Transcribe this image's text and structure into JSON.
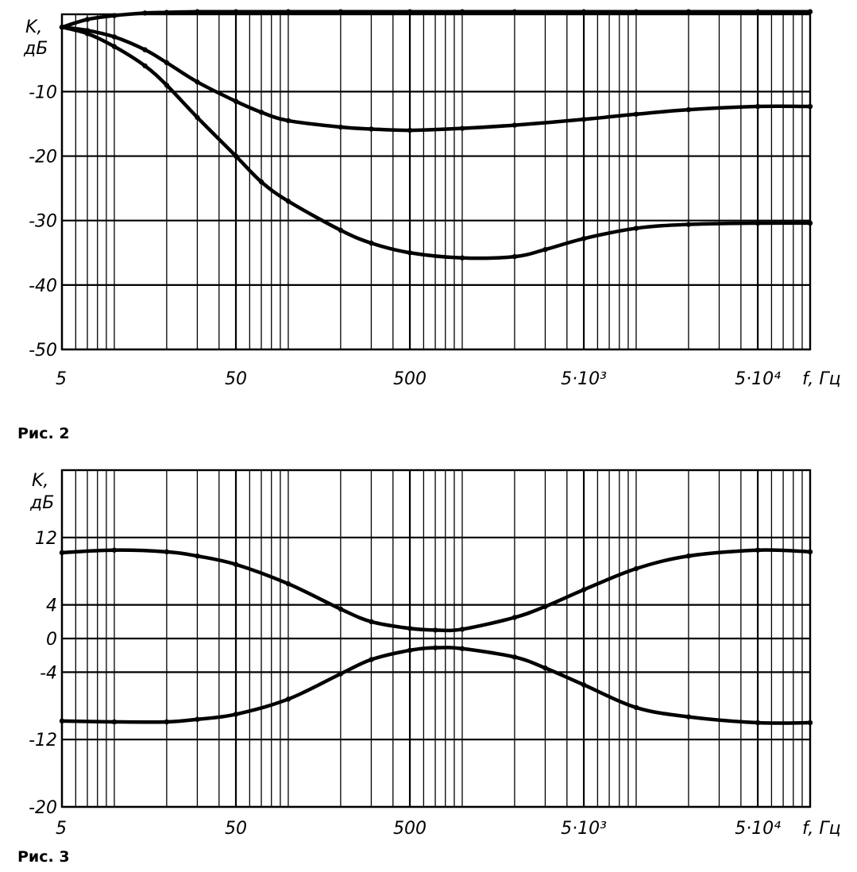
{
  "chart_data": [
    {
      "type": "line",
      "caption": "Рис. 2",
      "ylabel_line1": "K,",
      "ylabel_line2": "дБ",
      "xlabel": "f, Гц",
      "x_scale": "log",
      "xlim": [
        5,
        100000
      ],
      "ylim": [
        -50,
        2
      ],
      "x_ticks": [
        {
          "value": 5,
          "label": "5"
        },
        {
          "value": 50,
          "label": "50"
        },
        {
          "value": 500,
          "label": "500"
        },
        {
          "value": 5000,
          "label": "5·10³"
        },
        {
          "value": 50000,
          "label": "5·10⁴"
        }
      ],
      "y_ticks": [
        {
          "value": -10,
          "label": "-10"
        },
        {
          "value": -20,
          "label": "-20"
        },
        {
          "value": -30,
          "label": "-30"
        },
        {
          "value": -40,
          "label": "-40"
        },
        {
          "value": -50,
          "label": "-50"
        }
      ],
      "grid": true,
      "series": [
        {
          "x": [
            5,
            7,
            10,
            15,
            20,
            30,
            50,
            100,
            200,
            500,
            1000,
            2000,
            5000,
            10000,
            20000,
            50000,
            100000
          ],
          "y": [
            0,
            1.2,
            1.8,
            2.2,
            2.3,
            2.4,
            2.4,
            2.4,
            2.4,
            2.4,
            2.4,
            2.4,
            2.4,
            2.4,
            2.4,
            2.4,
            2.4
          ]
        },
        {
          "x": [
            5,
            7,
            10,
            15,
            20,
            30,
            50,
            70,
            100,
            200,
            300,
            500,
            1000,
            2000,
            5000,
            10000,
            20000,
            50000,
            100000
          ],
          "y": [
            0,
            -0.5,
            -1.5,
            -3.5,
            -5.5,
            -8.5,
            -11.5,
            -13.2,
            -14.5,
            -15.5,
            -15.8,
            -16,
            -15.7,
            -15.2,
            -14.3,
            -13.5,
            -12.8,
            -12.3,
            -12.3
          ]
        },
        {
          "x": [
            5,
            7,
            10,
            15,
            20,
            30,
            50,
            70,
            100,
            200,
            300,
            500,
            1000,
            2000,
            3000,
            5000,
            10000,
            20000,
            50000,
            100000
          ],
          "y": [
            0,
            -1,
            -3,
            -6,
            -9,
            -14,
            -20,
            -24,
            -27,
            -31.5,
            -33.5,
            -35,
            -35.8,
            -35.6,
            -34.5,
            -32.8,
            -31.2,
            -30.6,
            -30.4,
            -30.4
          ]
        }
      ]
    },
    {
      "type": "line",
      "caption": "Рис. 3",
      "ylabel_line1": "K,",
      "ylabel_line2": "дБ",
      "xlabel": "f, Гц",
      "x_scale": "log",
      "xlim": [
        5,
        100000
      ],
      "ylim": [
        -20,
        20
      ],
      "x_ticks": [
        {
          "value": 5,
          "label": "5"
        },
        {
          "value": 50,
          "label": "50"
        },
        {
          "value": 500,
          "label": "500"
        },
        {
          "value": 5000,
          "label": "5·10³"
        },
        {
          "value": 50000,
          "label": "5·10⁴"
        }
      ],
      "y_ticks": [
        {
          "value": 12,
          "label": "12"
        },
        {
          "value": 4,
          "label": "4"
        },
        {
          "value": 0,
          "label": "0"
        },
        {
          "value": -4,
          "label": "-4"
        },
        {
          "value": -12,
          "label": "-12"
        },
        {
          "value": -20,
          "label": "-20"
        }
      ],
      "grid": true,
      "series": [
        {
          "x": [
            5,
            10,
            20,
            30,
            50,
            100,
            200,
            300,
            500,
            700,
            1000,
            2000,
            3000,
            5000,
            10000,
            20000,
            50000,
            100000
          ],
          "y": [
            10.2,
            10.5,
            10.3,
            9.8,
            8.8,
            6.5,
            3.5,
            2.0,
            1.2,
            1.0,
            1.1,
            2.5,
            3.8,
            5.8,
            8.3,
            9.8,
            10.5,
            10.3
          ]
        },
        {
          "x": [
            5,
            10,
            20,
            30,
            50,
            100,
            200,
            300,
            500,
            700,
            1000,
            2000,
            3000,
            5000,
            10000,
            20000,
            50000,
            100000
          ],
          "y": [
            -9.8,
            -9.9,
            -9.9,
            -9.6,
            -9,
            -7.2,
            -4.2,
            -2.5,
            -1.4,
            -1.1,
            -1.2,
            -2.2,
            -3.5,
            -5.5,
            -8.2,
            -9.3,
            -10,
            -10
          ]
        }
      ]
    }
  ]
}
